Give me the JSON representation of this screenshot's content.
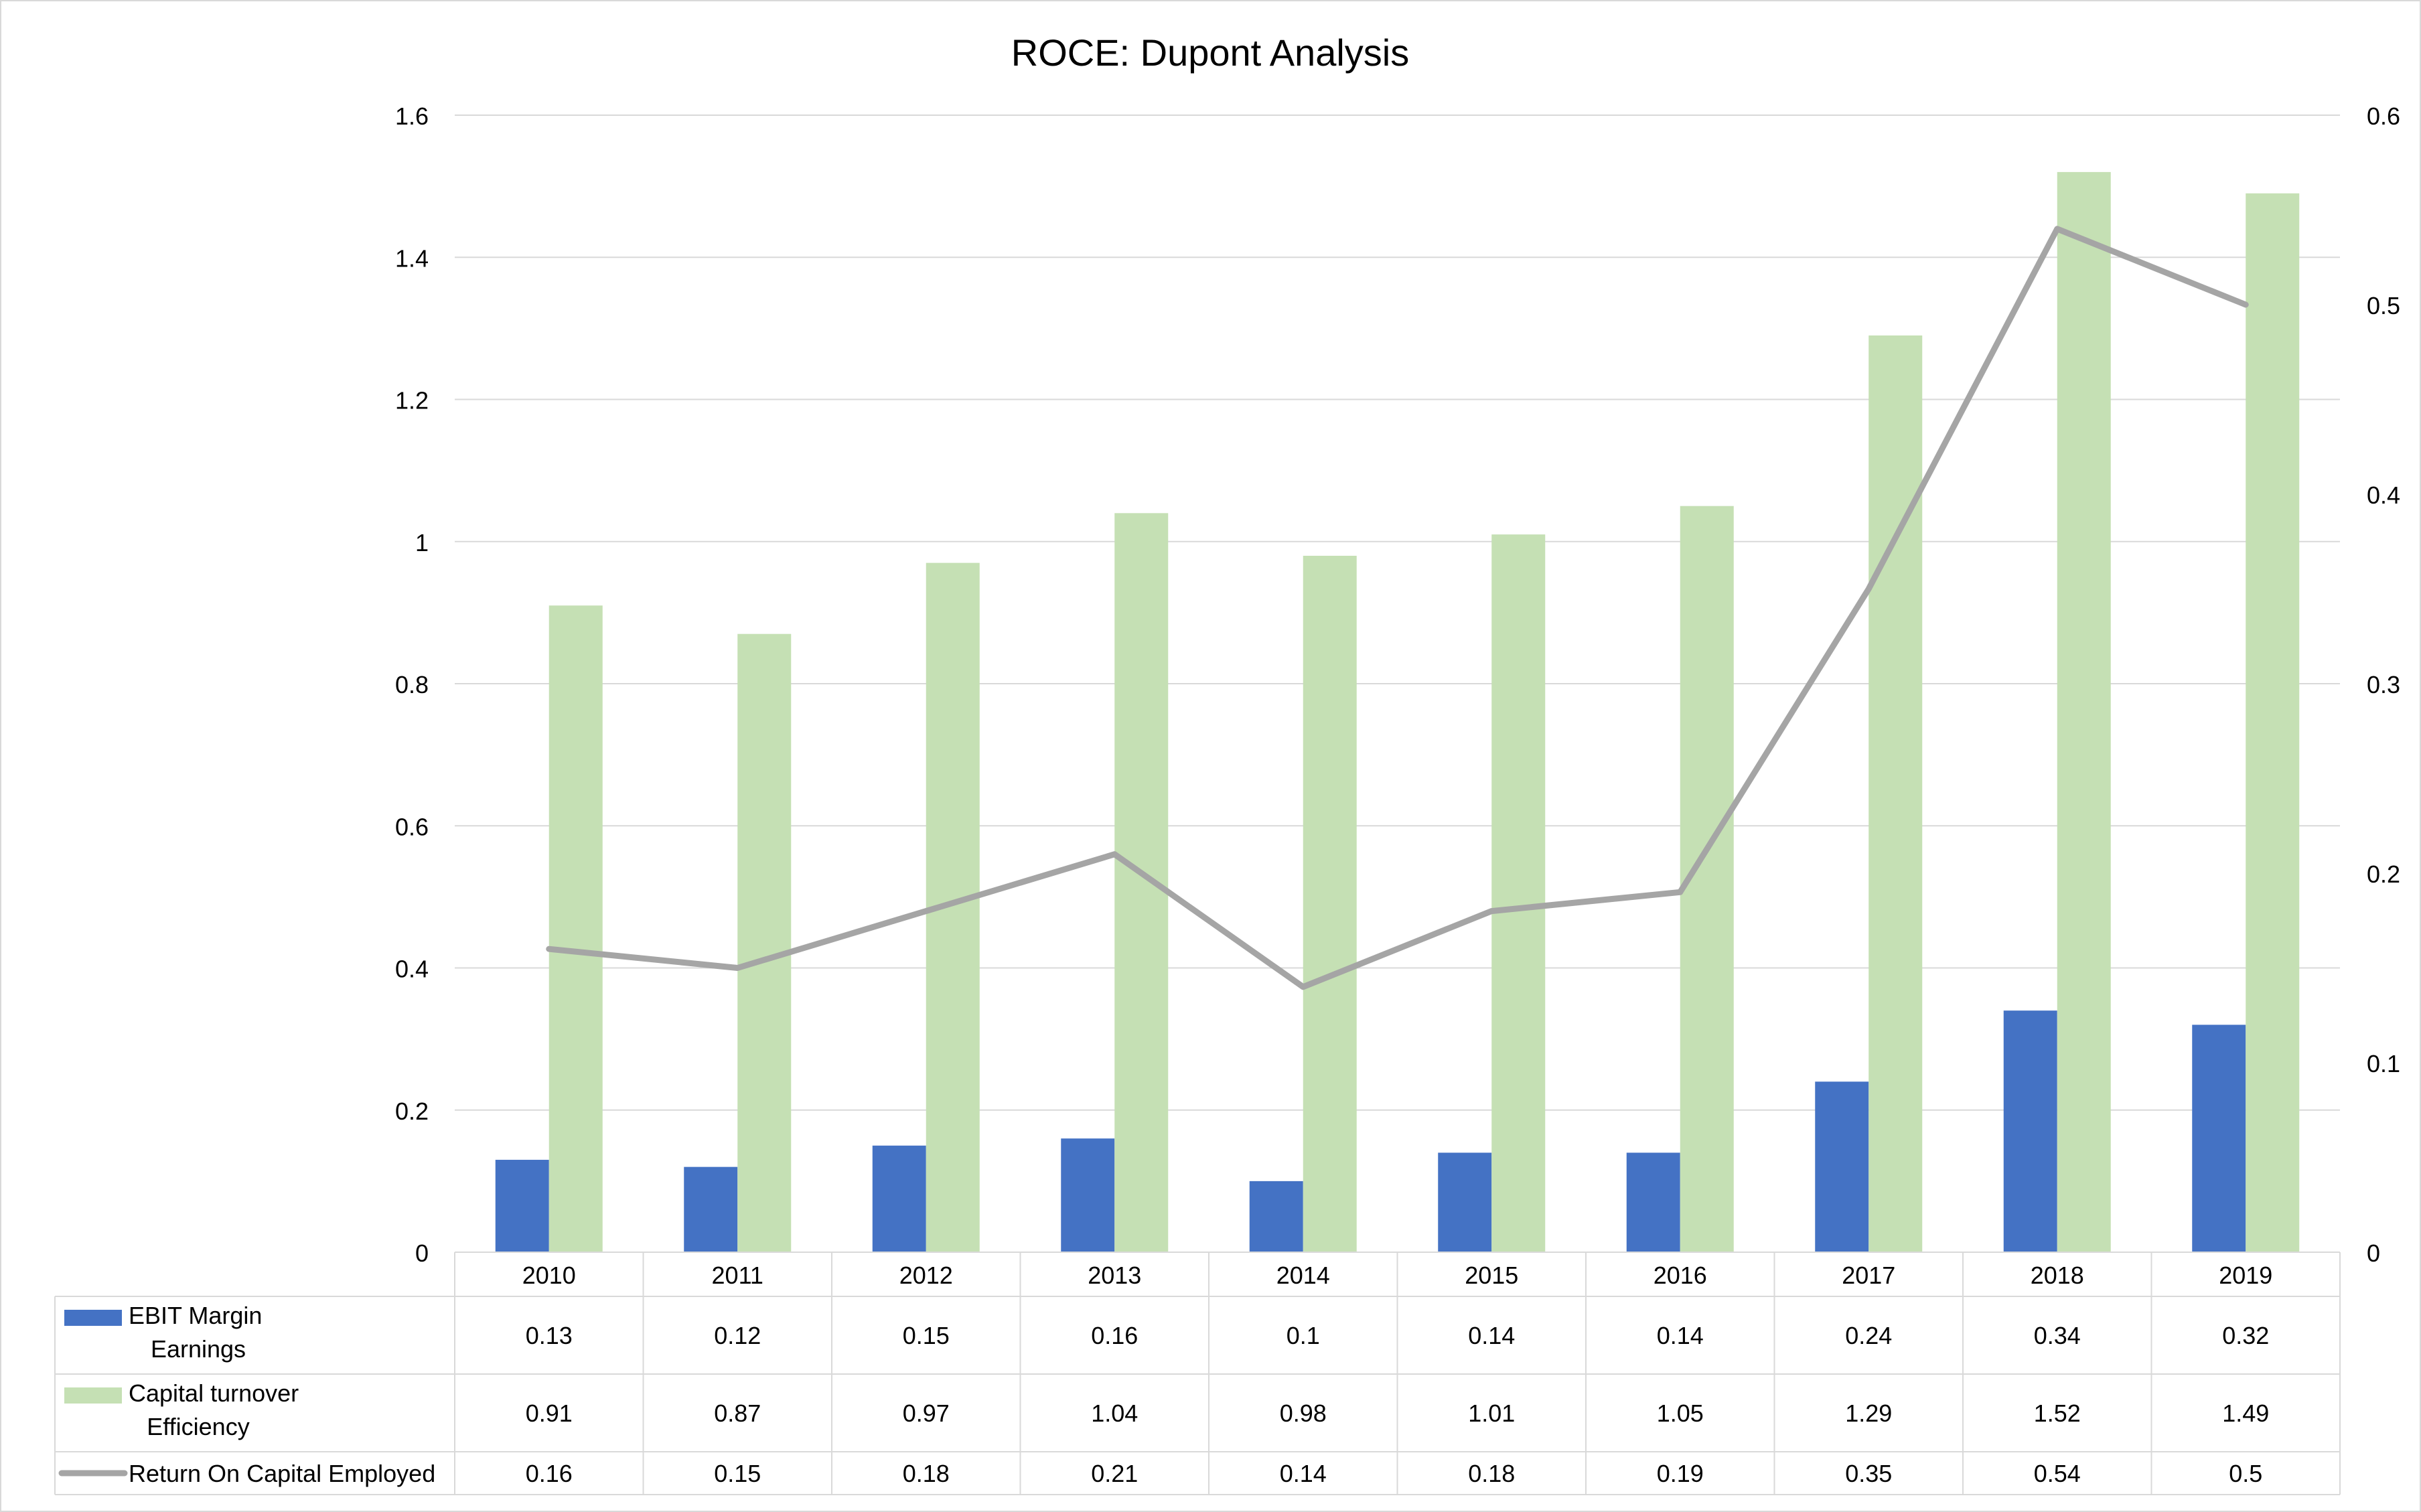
{
  "chart_data": {
    "type": "bar",
    "title": "ROCE: Dupont Analysis",
    "categories": [
      "2010",
      "2011",
      "2012",
      "2013",
      "2014",
      "2015",
      "2016",
      "2017",
      "2018",
      "2019"
    ],
    "y_left": {
      "min": 0,
      "max": 1.6,
      "ticks": [
        "0",
        "0.2",
        "0.4",
        "0.6",
        "0.8",
        "1",
        "1.2",
        "1.4",
        "1.6"
      ]
    },
    "y_right": {
      "min": 0,
      "max": 0.6,
      "ticks": [
        "0",
        "0.1",
        "0.2",
        "0.3",
        "0.4",
        "0.5",
        "0.6"
      ]
    },
    "grid": true,
    "legend": "data-table",
    "series": [
      {
        "name_lines": [
          "EBIT Margin",
          "Earnings"
        ],
        "type": "bar",
        "axis": "left",
        "color": "#4472c4",
        "values": [
          0.13,
          0.12,
          0.15,
          0.16,
          0.1,
          0.14,
          0.14,
          0.24,
          0.34,
          0.32
        ],
        "labels": [
          "0.13",
          "0.12",
          "0.15",
          "0.16",
          "0.1",
          "0.14",
          "0.14",
          "0.24",
          "0.34",
          "0.32"
        ]
      },
      {
        "name_lines": [
          "Capital turnover",
          "Efficiency"
        ],
        "type": "bar",
        "axis": "left",
        "color": "#c5e0b4",
        "values": [
          0.91,
          0.87,
          0.97,
          1.04,
          0.98,
          1.01,
          1.05,
          1.29,
          1.52,
          1.49
        ],
        "labels": [
          "0.91",
          "0.87",
          "0.97",
          "1.04",
          "0.98",
          "1.01",
          "1.05",
          "1.29",
          "1.52",
          "1.49"
        ]
      },
      {
        "name_lines": [
          "Return On Capital Employed"
        ],
        "type": "line",
        "axis": "right",
        "color": "#a5a5a5",
        "values": [
          0.16,
          0.15,
          0.18,
          0.21,
          0.14,
          0.18,
          0.19,
          0.35,
          0.54,
          0.5
        ],
        "labels": [
          "0.16",
          "0.15",
          "0.18",
          "0.21",
          "0.14",
          "0.18",
          "0.19",
          "0.35",
          "0.54",
          "0.5"
        ]
      }
    ]
  }
}
